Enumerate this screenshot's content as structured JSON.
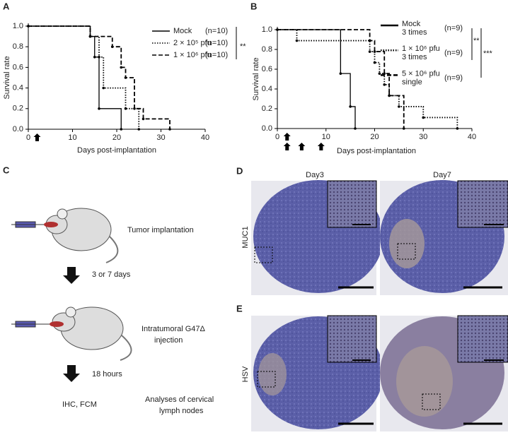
{
  "chart_data": [
    {
      "type": "step",
      "panel": "A",
      "ylabel": "Survival rate",
      "xlabel": "Days post-implantation",
      "xlim": [
        0,
        40
      ],
      "xticks": [
        0,
        10,
        20,
        30,
        40
      ],
      "ylim": [
        0,
        1.0
      ],
      "yticks": [
        {
          "value": 0,
          "label": "0.0"
        },
        {
          "value": 0.2,
          "label": "0.2"
        },
        {
          "value": 0.4,
          "label": "0.4"
        },
        {
          "value": 0.6,
          "label": "0.6"
        },
        {
          "value": 0.8,
          "label": "0.8"
        },
        {
          "value": 1.0,
          "label": "1.0"
        }
      ],
      "treatment_days": [
        2
      ],
      "series": [
        {
          "name": "Mock",
          "n": "(n=10)",
          "color": "#000000",
          "style": "solid",
          "x": [
            0,
            14,
            15,
            16,
            21
          ],
          "values": [
            1.0,
            0.9,
            0.7,
            0.2,
            0.0
          ]
        },
        {
          "name": "2 × 10⁵ pfu",
          "n": "(n=10)",
          "color": "#000000",
          "style": "dotted",
          "x": [
            0,
            14,
            16,
            17,
            22,
            25
          ],
          "values": [
            1.0,
            0.9,
            0.7,
            0.4,
            0.2,
            0.0
          ]
        },
        {
          "name": "1 × 10⁶ pfu",
          "n": "(n=10)",
          "color": "#000000",
          "style": "dashed",
          "x": [
            0,
            14,
            19,
            21,
            22,
            24,
            26,
            32
          ],
          "values": [
            1.0,
            0.9,
            0.8,
            0.6,
            0.5,
            0.2,
            0.1,
            0.0
          ]
        }
      ],
      "significance": [
        "**"
      ]
    },
    {
      "type": "step",
      "panel": "B",
      "ylabel": "Survival rate",
      "xlabel": "Days post-implantation",
      "xlim": [
        0,
        40
      ],
      "xticks": [
        0,
        10,
        20,
        30,
        40
      ],
      "ylim": [
        0,
        1.0
      ],
      "yticks": [
        {
          "value": 0,
          "label": "0.0"
        },
        {
          "value": 0.2,
          "label": "0.2"
        },
        {
          "value": 0.4,
          "label": "0.4"
        },
        {
          "value": 0.6,
          "label": "0.6"
        },
        {
          "value": 0.8,
          "label": "0.8"
        },
        {
          "value": 1.0,
          "label": "1.0"
        }
      ],
      "treatment_days": [
        2,
        2,
        5,
        9
      ],
      "series": [
        {
          "name": "Mock",
          "detail": "3 times",
          "n": "(n=9)",
          "color": "#000000",
          "style": "solid",
          "x": [
            0,
            13,
            15,
            16
          ],
          "values": [
            1.0,
            0.556,
            0.222,
            0.0
          ]
        },
        {
          "name": "1 × 10⁶ pfu",
          "detail": "3 times",
          "n": "(n=9)",
          "color": "#000000",
          "style": "dotted",
          "x": [
            0,
            4,
            19,
            20,
            21,
            22,
            23,
            25,
            30,
            37
          ],
          "values": [
            1.0,
            0.889,
            0.778,
            0.667,
            0.556,
            0.444,
            0.333,
            0.222,
            0.111,
            0.0
          ]
        },
        {
          "name": "5 × 10⁶ pfu",
          "detail": "single",
          "n": "(n=9)",
          "color": "#000000",
          "style": "dashed",
          "x": [
            0,
            19,
            20,
            22,
            23,
            26
          ],
          "values": [
            1.0,
            0.889,
            0.778,
            0.556,
            0.333,
            0.0
          ]
        }
      ],
      "significance": [
        "**",
        "***"
      ]
    }
  ],
  "panel_c": {
    "label": "C",
    "steps": [
      "Tumor implantation",
      "3 or 7 days",
      "Intratumoral G47Δ",
      "injection",
      "18 hours",
      "IHC, FCM",
      "Analyses of cervical",
      "lymph nodes"
    ]
  },
  "panel_d": {
    "label": "D",
    "columns": [
      "Day3",
      "Day7"
    ],
    "row": "MUC1"
  },
  "panel_e": {
    "label": "E",
    "row": "HSV"
  }
}
